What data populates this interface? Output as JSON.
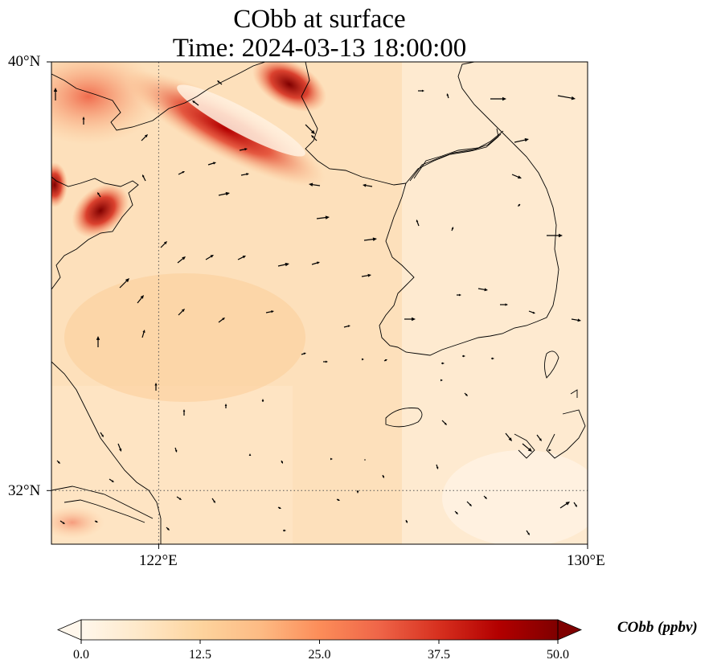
{
  "title_line1": "CObb at surface",
  "title_line2": "Time: 2024-03-13 18:00:00",
  "map": {
    "lon_range": [
      120,
      130
    ],
    "lat_range": [
      31,
      40
    ],
    "xticks": [
      {
        "value": 122,
        "label": "122°E"
      },
      {
        "value": 130,
        "label": "130°E"
      }
    ],
    "yticks": [
      {
        "value": 40,
        "label": "40°N"
      },
      {
        "value": 32,
        "label": "32°N"
      }
    ],
    "gridlines": "dotted"
  },
  "colorbar": {
    "label": "CObb (ppbv)",
    "min": 0.0,
    "max": 50.0,
    "ticks": [
      "0.0",
      "12.5",
      "25.0",
      "37.5",
      "50.0"
    ],
    "extend": "both",
    "colormap": [
      "#fff7ec",
      "#fee8c8",
      "#fdd49e",
      "#fdbb84",
      "#fc8d59",
      "#ef6548",
      "#d7301f",
      "#b30000",
      "#7f0000"
    ]
  }
}
